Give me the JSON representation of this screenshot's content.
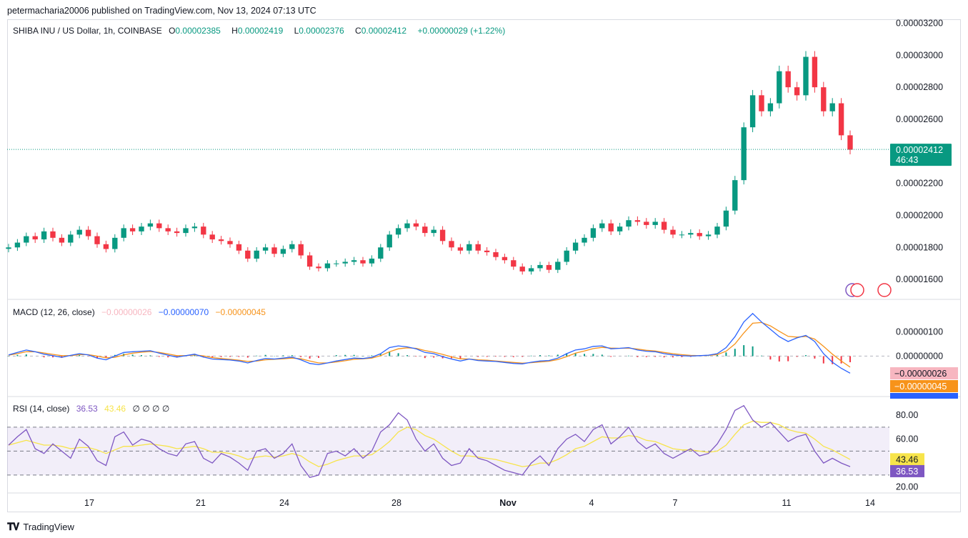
{
  "header": {
    "text": "petermacharia20006 published on TradingView.com, Nov 13, 2024 07:13 UTC"
  },
  "footer": {
    "brand": "TradingView"
  },
  "price_legend": {
    "symbol": "SHIBA INU / US Dollar, 1h, COINBASE",
    "o_label": "O",
    "o_value": "0.00002385",
    "h_label": "H",
    "h_value": "0.00002419",
    "l_label": "L",
    "l_value": "0.00002376",
    "c_label": "C",
    "c_value": "0.00002412",
    "change": "+0.00000029 (+1.22%)"
  },
  "macd_legend": {
    "label": "MACD (12, 26, close)",
    "hist": "−0.00000026",
    "macd": "−0.00000070",
    "signal": "−0.00000045"
  },
  "rsi_legend": {
    "label": "RSI (14, close)",
    "rsi": "36.53",
    "ma": "43.46",
    "extra": "∅ ∅ ∅ ∅"
  },
  "colors": {
    "up": "#089981",
    "down": "#f23645",
    "macd": "#2962ff",
    "signal": "#f7931a",
    "rsi": "#7e57c2",
    "rsi_ma": "#f7e44a",
    "hist_neg": "#f7b6c0",
    "grid": "#d9dbe1"
  },
  "price_badge": {
    "price": "0.00002412",
    "countdown": "46:43"
  },
  "chart_data": [
    {
      "type": "candlestick",
      "title": "SHIBA INU / US Dollar, 1h, COINBASE",
      "x_ticks": [
        "17",
        "21",
        "24",
        "28",
        "Nov",
        "4",
        "7",
        "11",
        "14"
      ],
      "y_ticks": [
        "0.00003200",
        "0.00003000",
        "0.00002800",
        "0.00002600",
        "0.00002200",
        "0.00002000",
        "0.00001800",
        "0.00001600"
      ],
      "ylim": [
        1.48e-05,
        3.22e-05
      ],
      "last_price": 2.412e-05,
      "series": [
        {
          "name": "close",
          "values": [
            1.8e-05,
            1.83e-05,
            1.87e-05,
            1.85e-05,
            1.9e-05,
            1.86e-05,
            1.83e-05,
            1.88e-05,
            1.91e-05,
            1.87e-05,
            1.82e-05,
            1.79e-05,
            1.86e-05,
            1.92e-05,
            1.9e-05,
            1.93e-05,
            1.95e-05,
            1.92e-05,
            1.9e-05,
            1.89e-05,
            1.92e-05,
            1.93e-05,
            1.88e-05,
            1.85e-05,
            1.84e-05,
            1.82e-05,
            1.78e-05,
            1.73e-05,
            1.78e-05,
            1.8e-05,
            1.76e-05,
            1.79e-05,
            1.82e-05,
            1.75e-05,
            1.68e-05,
            1.67e-05,
            1.7e-05,
            1.7e-05,
            1.71e-05,
            1.72e-05,
            1.7e-05,
            1.73e-05,
            1.8e-05,
            1.88e-05,
            1.92e-05,
            1.95e-05,
            1.93e-05,
            1.89e-05,
            1.91e-05,
            1.84e-05,
            1.8e-05,
            1.78e-05,
            1.82e-05,
            1.78e-05,
            1.77e-05,
            1.74e-05,
            1.72e-05,
            1.68e-05,
            1.65e-05,
            1.67e-05,
            1.69e-05,
            1.66e-05,
            1.71e-05,
            1.78e-05,
            1.83e-05,
            1.86e-05,
            1.92e-05,
            1.95e-05,
            1.9e-05,
            1.93e-05,
            1.97e-05,
            1.96e-05,
            1.94e-05,
            1.96e-05,
            1.91e-05,
            1.88e-05,
            1.88e-05,
            1.89e-05,
            1.87e-05,
            1.88e-05,
            1.93e-05,
            2.03e-05,
            2.22e-05,
            2.55e-05,
            2.75e-05,
            2.65e-05,
            2.7e-05,
            2.9e-05,
            2.8e-05,
            2.75e-05,
            2.99e-05,
            2.8e-05,
            2.65e-05,
            2.7e-05,
            2.5e-05,
            2.41e-05
          ]
        }
      ]
    },
    {
      "type": "line",
      "title": "MACD (12, 26, close)",
      "y_ticks": [
        "0.00000100",
        "0.00000000"
      ],
      "ylim": [
        -1.6e-06,
        2.3e-06
      ],
      "series": [
        {
          "name": "MACD",
          "values": [
            5e-08,
            1.5e-07,
            2.5e-07,
            1.8e-07,
            8e-08,
            2e-08,
            -5e-08,
            3e-08,
            1e-07,
            5e-08,
            -8e-08,
            -1.5e-07,
            0.0,
            1.5e-07,
            1.8e-07,
            2e-07,
            2.2e-07,
            1.2e-07,
            4e-08,
            -4e-08,
            2e-08,
            8e-08,
            -4e-08,
            -1.2e-07,
            -1.4e-07,
            -1.6e-07,
            -2e-07,
            -2.8e-07,
            -1.8e-07,
            -1e-07,
            -1.2e-07,
            -8e-08,
            -4e-08,
            -1.5e-07,
            -3e-07,
            -3.5e-07,
            -2.8e-07,
            -2e-07,
            -1.4e-07,
            -8e-08,
            -1e-07,
            -5e-08,
            1e-07,
            3.5e-07,
            4.2e-07,
            3.8e-07,
            3e-07,
            1.5e-07,
            1e-07,
            -2e-08,
            -1.2e-07,
            -2e-07,
            -1.2e-07,
            -1.8e-07,
            -2e-07,
            -2.2e-07,
            -2.6e-07,
            -3e-07,
            -3.2e-07,
            -2.5e-07,
            -2e-07,
            -1.8e-07,
            -8e-08,
            1e-07,
            2.5e-07,
            3e-07,
            4e-07,
            4.2e-07,
            3e-07,
            3.2e-07,
            3.5e-07,
            2.5e-07,
            2e-07,
            1.8e-07,
            1e-07,
            5e-08,
            2e-08,
            0.0,
            2e-08,
            4e-08,
            1e-07,
            3.5e-07,
            8e-07,
            1.4e-06,
            1.75e-06,
            1.4e-06,
            1.1e-06,
            8e-07,
            6e-07,
            7.5e-07,
            8.5e-07,
            6e-07,
            1e-07,
            -2.5e-07,
            -5e-07,
            -7e-07
          ]
        },
        {
          "name": "Signal",
          "values": [
            4e-08,
            1e-07,
            1.8e-07,
            1.8e-07,
            1.3e-07,
            7e-08,
            2e-08,
            2e-08,
            6e-08,
            6e-08,
            0.0,
            -7e-08,
            -5e-08,
            5e-08,
            1.2e-07,
            1.6e-07,
            1.9e-07,
            1.5e-07,
            9e-08,
            2e-08,
            2e-08,
            5e-08,
            1e-08,
            -6e-08,
            -1e-07,
            -1.3e-07,
            -1.7e-07,
            -2.2e-07,
            -2e-07,
            -1.5e-07,
            -1.3e-07,
            -1.1e-07,
            -8e-08,
            -1.1e-07,
            -2e-07,
            -2.8e-07,
            -2.8e-07,
            -2.4e-07,
            -1.9e-07,
            -1.3e-07,
            -1.1e-07,
            -8e-08,
            2e-08,
            1.8e-07,
            3e-07,
            3.4e-07,
            3.2e-07,
            2.3e-07,
            1.6e-07,
            7e-08,
            -3e-08,
            -1.1e-07,
            -1.2e-07,
            -1.5e-07,
            -1.7e-07,
            -2e-07,
            -2.3e-07,
            -2.6e-07,
            -2.9e-07,
            -2.7e-07,
            -2.4e-07,
            -2.1e-07,
            -1.4e-07,
            -2e-08,
            1.2e-07,
            2.1e-07,
            3.1e-07,
            3.6e-07,
            3.3e-07,
            3.2e-07,
            3.3e-07,
            2.9e-07,
            2.4e-07,
            2.1e-07,
            1.5e-07,
            1e-07,
            6e-08,
            3e-08,
            2e-08,
            3e-08,
            6e-08,
            2e-07,
            5e-07,
            9.5e-07,
            1.35e-06,
            1.38e-06,
            1.24e-06,
            1.02e-06,
            8.1e-07,
            7.8e-07,
            8.1e-07,
            7e-07,
            4e-07,
            8e-08,
            -2e-07,
            -4.5e-07
          ]
        }
      ]
    },
    {
      "type": "line",
      "title": "RSI (14, close)",
      "y_ticks": [
        "80.00",
        "60.00",
        "20.00"
      ],
      "ylim": [
        15,
        95
      ],
      "bands": [
        30,
        50,
        70
      ],
      "series": [
        {
          "name": "RSI",
          "values": [
            55,
            62,
            68,
            52,
            48,
            56,
            50,
            44,
            60,
            54,
            42,
            38,
            62,
            66,
            55,
            60,
            58,
            52,
            48,
            46,
            56,
            58,
            44,
            40,
            48,
            45,
            40,
            34,
            50,
            52,
            44,
            48,
            56,
            38,
            28,
            30,
            48,
            50,
            46,
            52,
            44,
            50,
            66,
            72,
            82,
            76,
            60,
            50,
            56,
            44,
            38,
            40,
            52,
            44,
            42,
            38,
            34,
            32,
            30,
            40,
            46,
            38,
            52,
            60,
            64,
            58,
            68,
            72,
            56,
            62,
            70,
            58,
            52,
            56,
            48,
            44,
            48,
            52,
            46,
            48,
            56,
            68,
            84,
            88,
            76,
            70,
            74,
            66,
            58,
            62,
            64,
            50,
            40,
            44,
            40,
            37
          ]
        },
        {
          "name": "RSI MA",
          "values": [
            55,
            57,
            59,
            57,
            55,
            55,
            54,
            52,
            53,
            53,
            51,
            48,
            51,
            54,
            54,
            55,
            56,
            55,
            54,
            52,
            53,
            54,
            52,
            49,
            49,
            48,
            46,
            43,
            45,
            46,
            45,
            46,
            48,
            46,
            41,
            37,
            39,
            42,
            44,
            46,
            46,
            47,
            52,
            58,
            66,
            70,
            68,
            63,
            60,
            55,
            50,
            46,
            46,
            45,
            44,
            43,
            41,
            39,
            37,
            38,
            40,
            40,
            43,
            47,
            52,
            54,
            58,
            62,
            61,
            61,
            63,
            62,
            59,
            58,
            55,
            52,
            51,
            51,
            50,
            49,
            50,
            55,
            64,
            72,
            75,
            74,
            74,
            72,
            68,
            66,
            65,
            60,
            54,
            51,
            47,
            43
          ]
        }
      ]
    }
  ]
}
